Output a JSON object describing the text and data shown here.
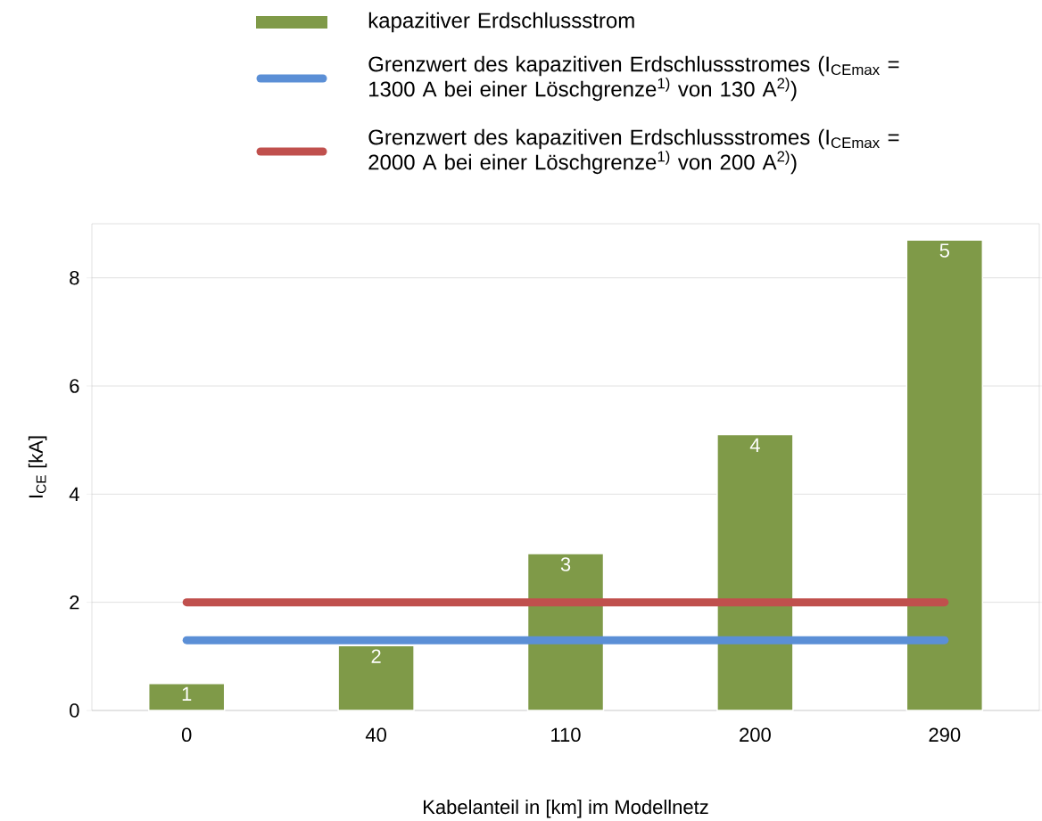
{
  "chart_data": {
    "type": "bar",
    "categories": [
      "0",
      "40",
      "110",
      "200",
      "290"
    ],
    "xlabel": "Kabelanteil in [km] im Modellnetz",
    "ylabel": "I$_{CE}$ [kA]",
    "annotations": [
      {
        "text": "1",
        "x": "0",
        "y": 0.5
      },
      {
        "text": "2",
        "x": "40",
        "y": 1.2
      },
      {
        "text": "3",
        "x": "110",
        "y": 2.9
      },
      {
        "text": "4",
        "x": "200",
        "y": 5.1
      },
      {
        "text": "5",
        "x": "290",
        "y": 8.7
      }
    ],
    "ylim": [
      0,
      9
    ],
    "yticks": [
      0,
      2,
      4,
      6,
      8
    ],
    "grid": "y",
    "legend": "top",
    "series": [
      {
        "type": "bar",
        "name": "kapazitiver Erdschlussstrom",
        "color": "#7f9a48",
        "values": [
          0.5,
          1.2,
          2.9,
          5.1,
          8.7
        ]
      },
      {
        "type": "line",
        "name": "Grenzwert des kapazitiven Erdschlussstromes (I$_{CEmax}$ = 1300 A bei einer Löschgrenze$^{1)}$ von 130 A$^{2)}$)",
        "color": "#5b8fd6",
        "values": [
          1.3,
          1.3,
          1.3,
          1.3,
          1.3
        ]
      },
      {
        "type": "line",
        "name": "Grenzwert des kapazitiven Erdschlussstromes (I$_{CEmax}$ = 2000 A bei einer Löschgrenze$^{1)}$ von 200 A$^{2)}$)",
        "color": "#c0504d",
        "values": [
          2.0,
          2.0,
          2.0,
          2.0,
          2.0
        ]
      }
    ]
  }
}
